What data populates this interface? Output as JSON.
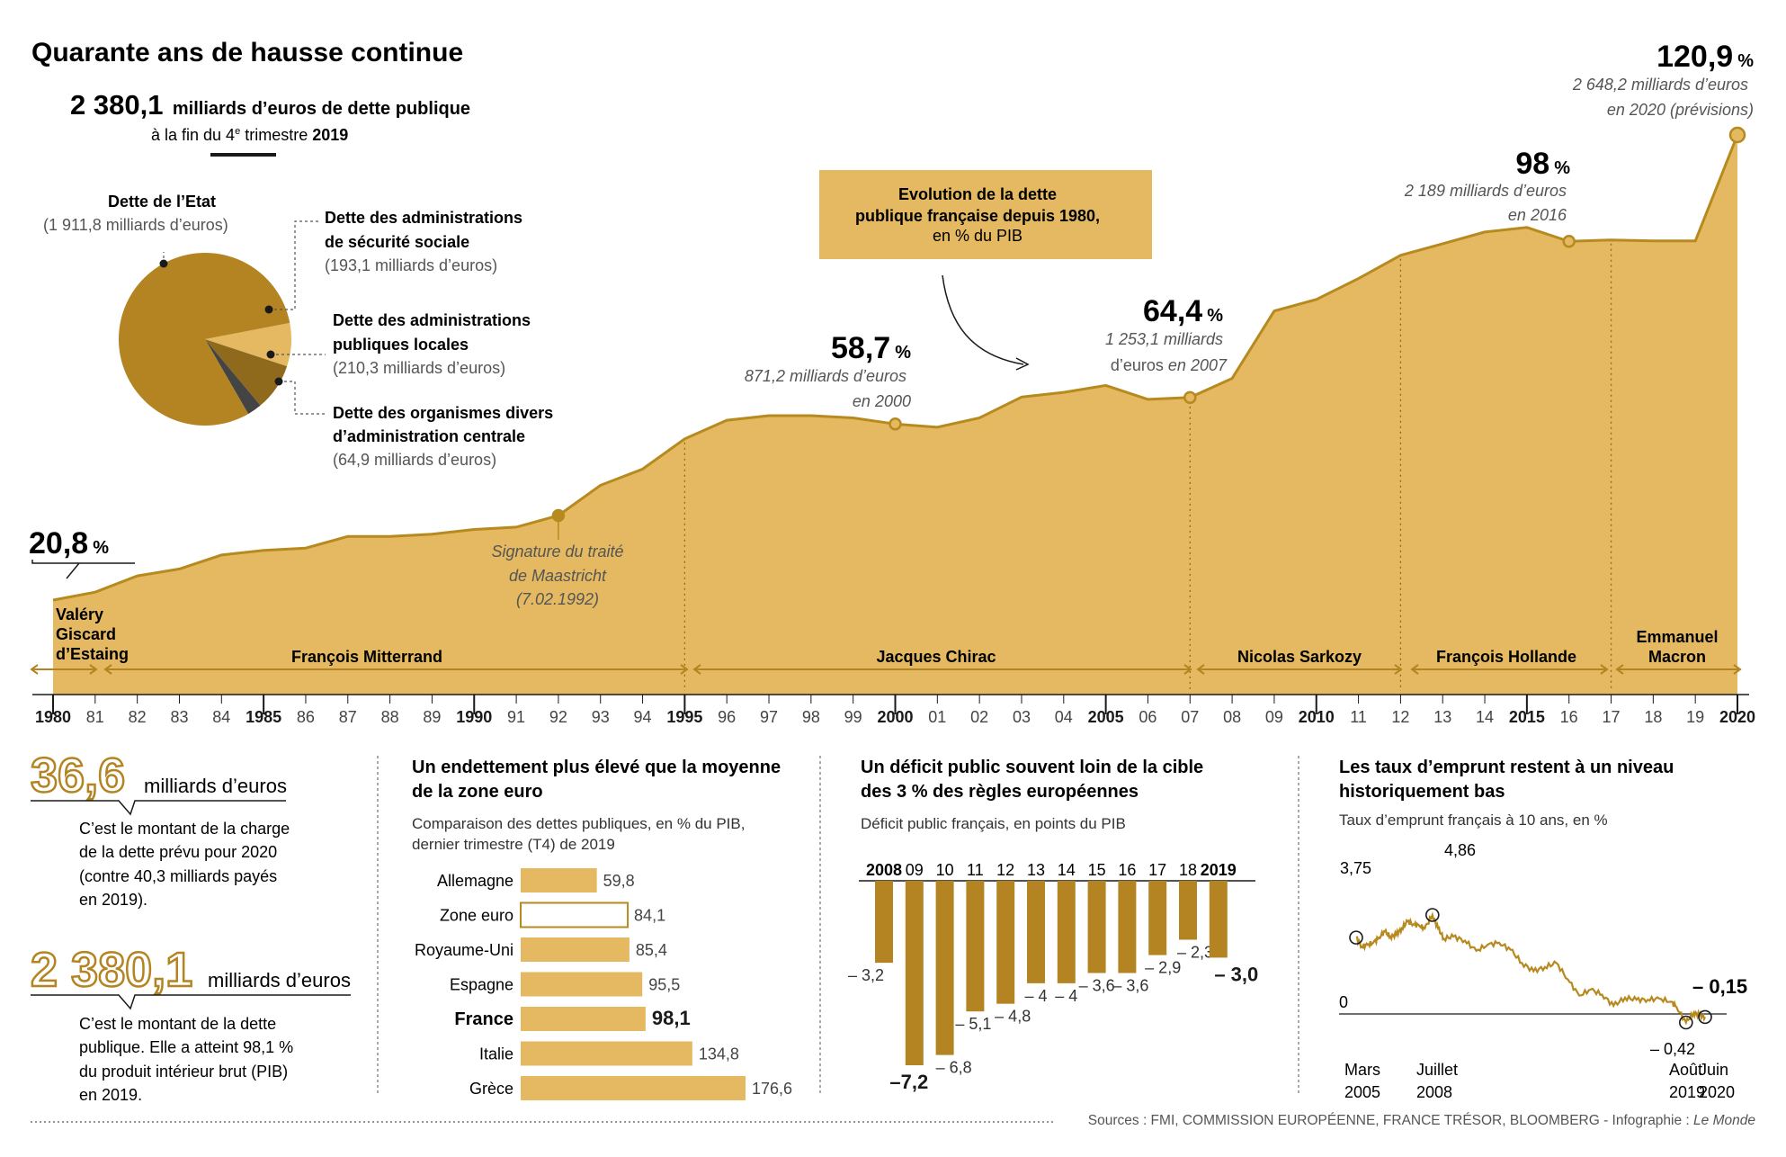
{
  "colors": {
    "area": "#e4b961",
    "line": "#b78a1f",
    "dark": "#b38421",
    "pie_main": "#b38421",
    "pie_light": "#e5b962",
    "pie_mid": "#8f6a1d",
    "pie_dark": "#444444",
    "text": "#1a1a1a",
    "gray": "#555555"
  },
  "header": {
    "title": "Quarante ans de hausse continue",
    "total_value": "2 380,1",
    "total_text": "milliards d’euros de dette publique",
    "total_sub_prefix": "à la fin du 4",
    "total_sub_sup": "e",
    "total_sub_suffix": " trimestre ",
    "total_sub_year": "2019"
  },
  "pie": {
    "slices": [
      {
        "name": "Dette de l’Etat",
        "detail": "(1 911,8 milliards d’euros)",
        "value": 1911.8
      },
      {
        "name_line1": "Dette des administrations",
        "name_line2": "de sécurité sociale",
        "detail": "(193,1 milliards d’euros)",
        "value": 193.1
      },
      {
        "name_line1": "Dette des administrations",
        "name_line2": "publiques locales",
        "detail": "(210,3 milliards d’euros)",
        "value": 210.3
      },
      {
        "name_line1": "Dette des organismes divers",
        "name_line2": "d’administration centrale",
        "detail": "(64,9 milliards d’euros)",
        "value": 64.9
      }
    ]
  },
  "chart_data": [
    {
      "type": "area",
      "title": "Evolution de la dette publique française depuis 1980, en % du PIB",
      "title_line1": "Evolution de la dette",
      "title_line2": "publique française depuis 1980,",
      "title_line3": "en % du PIB",
      "x": [
        1980,
        1981,
        1982,
        1983,
        1984,
        1985,
        1986,
        1987,
        1988,
        1989,
        1990,
        1991,
        1992,
        1993,
        1994,
        1995,
        1996,
        1997,
        1998,
        1999,
        2000,
        2001,
        2002,
        2003,
        2004,
        2005,
        2006,
        2007,
        2008,
        2009,
        2010,
        2011,
        2012,
        2013,
        2014,
        2015,
        2016,
        2017,
        2018,
        2019,
        2020
      ],
      "values": [
        20.8,
        22.5,
        26.0,
        27.5,
        30.5,
        31.5,
        32.0,
        34.5,
        34.5,
        35.0,
        36.0,
        36.5,
        39.0,
        45.5,
        49.0,
        55.5,
        59.5,
        60.5,
        60.5,
        60.0,
        58.7,
        58.0,
        60.0,
        64.5,
        65.5,
        67.0,
        64.0,
        64.4,
        68.5,
        83.0,
        85.5,
        90.0,
        95.0,
        97.5,
        100.0,
        101.0,
        98.0,
        98.3,
        98.1,
        98.1,
        120.9
      ],
      "ylim": [
        0,
        125
      ],
      "x_tick_labels": [
        "1980",
        "81",
        "82",
        "83",
        "84",
        "1985",
        "86",
        "87",
        "88",
        "89",
        "1990",
        "91",
        "92",
        "93",
        "94",
        "1995",
        "96",
        "97",
        "98",
        "99",
        "2000",
        "01",
        "02",
        "03",
        "04",
        "2005",
        "06",
        "07",
        "08",
        "09",
        "2010",
        "11",
        "12",
        "13",
        "14",
        "2015",
        "16",
        "17",
        "18",
        "19",
        "2020"
      ],
      "annotations": {
        "start_value": "20,8",
        "start_unit": "%",
        "maastricht_line1": "Signature du traité",
        "maastricht_line2": "de Maastricht",
        "maastricht_line3": "(7.02.1992)",
        "y2000_value": "58,7",
        "y2000_unit": "%",
        "y2000_line1": "871,2 milliards d’euros",
        "y2000_line2": "en 2000",
        "y2007_value": "64,4",
        "y2007_unit": "%",
        "y2007_line1": "1 253,1 milliards",
        "y2007_line2a": "d’euros",
        "y2007_line2b": " en 2007",
        "y2016_value": "98",
        "y2016_unit": "%",
        "y2016_line1": "2 189 milliards d’euros",
        "y2016_line2": "en 2016",
        "y2020_value": "120,9",
        "y2020_unit": "%",
        "y2020_line1": "2 648,2 milliards d’euros",
        "y2020_line2a": "en 2020",
        "y2020_line2b": " (prévisions)"
      },
      "presidents": [
        {
          "line1": "Valéry",
          "line2": "Giscard",
          "line3": "d’Estaing"
        },
        {
          "line1": "François Mitterrand"
        },
        {
          "line1": "Jacques Chirac"
        },
        {
          "line1": "Nicolas Sarkozy"
        },
        {
          "line1": "François Hollande"
        },
        {
          "line1": "Emmanuel",
          "line2": "Macron"
        }
      ]
    },
    {
      "type": "bar",
      "title": "Un endettement plus élevé que la moyenne de la zone euro",
      "title_line1": "Un endettement plus élevé que la moyenne",
      "title_line2": "de la zone euro",
      "subtitle_line1": "Comparaison des dettes publiques, en % du PIB,",
      "subtitle_line2": "dernier trimestre (T4) de 2019",
      "categories": [
        "Allemagne",
        "Zone euro",
        "Royaume-Uni",
        "Espagne",
        "France",
        "Italie",
        "Grèce"
      ],
      "values": [
        59.8,
        84.1,
        85.4,
        95.5,
        98.1,
        134.8,
        176.6
      ],
      "value_labels": [
        "59,8",
        "84,1",
        "85,4",
        "95,5",
        "98,1",
        "134,8",
        "176,6"
      ]
    },
    {
      "type": "bar",
      "title": "Un déficit public souvent loin de la cible des 3 % des règles européennes",
      "title_line1": "Un déficit public souvent loin de la cible",
      "title_line2": "des 3 % des règles européennes",
      "subtitle": "Déficit public français, en points du PIB",
      "categories": [
        "2008",
        "09",
        "10",
        "11",
        "12",
        "13",
        "14",
        "15",
        "16",
        "17",
        "18",
        "2019"
      ],
      "values": [
        -3.2,
        -7.2,
        -6.8,
        -5.1,
        -4.8,
        -4.0,
        -4.0,
        -3.6,
        -3.6,
        -2.9,
        -2.3,
        -3.0
      ],
      "value_labels": [
        "– 3,2",
        "–7,2",
        "– 6,8",
        "– 5,1",
        "– 4,8",
        "– 4",
        "– 4",
        "– 3,6",
        "– 3,6",
        "– 2,9",
        "– 2,3",
        "– 3,0"
      ]
    },
    {
      "type": "line",
      "title": "Les taux d’emprunt restent à un niveau historiquement bas",
      "title_line1": "Les taux d’emprunt restent à un niveau",
      "title_line2": "historiquement bas",
      "subtitle": "Taux d’emprunt français à 10 ans, en %",
      "x": [
        "2005-03",
        "2005-06",
        "2005-09",
        "2005-12",
        "2006-03",
        "2006-06",
        "2006-09",
        "2006-12",
        "2007-03",
        "2007-06",
        "2007-09",
        "2007-12",
        "2008-03",
        "2008-07",
        "2008-10",
        "2009-01",
        "2009-06",
        "2009-12",
        "2010-06",
        "2010-12",
        "2011-06",
        "2011-12",
        "2012-06",
        "2012-12",
        "2013-06",
        "2013-12",
        "2014-06",
        "2014-12",
        "2015-06",
        "2015-12",
        "2016-06",
        "2016-12",
        "2017-06",
        "2017-12",
        "2018-06",
        "2018-12",
        "2019-03",
        "2019-08",
        "2019-12",
        "2020-03",
        "2020-06"
      ],
      "values": [
        3.75,
        3.3,
        3.4,
        3.5,
        3.75,
        4.05,
        3.8,
        3.9,
        4.2,
        4.55,
        4.4,
        4.35,
        4.2,
        4.86,
        4.2,
        3.7,
        3.8,
        3.6,
        3.1,
        3.4,
        3.5,
        3.15,
        2.5,
        2.1,
        2.3,
        2.5,
        1.7,
        0.9,
        1.2,
        0.95,
        0.4,
        0.8,
        0.7,
        0.7,
        0.75,
        0.6,
        0.35,
        -0.42,
        0.05,
        -0.05,
        -0.15
      ],
      "y_tick": "0",
      "annotations": {
        "start": "3,75",
        "peak": "4,86",
        "low": "– 0,42",
        "end": "– 0,15"
      },
      "x_labels": [
        {
          "line1": "Mars",
          "line2": "2005"
        },
        {
          "line1": "Juillet",
          "line2": "2008"
        },
        {
          "line1": "Août",
          "line2": "2019"
        },
        {
          "line1": "Juin",
          "line2": "2020"
        }
      ]
    }
  ],
  "facts": [
    {
      "value": "36,6",
      "unit": "milliards d’euros",
      "lines": [
        "C’est le montant de la charge",
        "de la dette prévu pour 2020",
        "(contre 40,3 milliards payés",
        "en 2019)."
      ]
    },
    {
      "value": "2 380,1",
      "unit": "milliards d’euros",
      "lines": [
        "C’est le montant de la dette",
        "publique. Elle a atteint 98,1 %",
        "du produit intérieur brut (PIB)",
        "en 2019."
      ]
    }
  ],
  "footer": {
    "sources": "Sources : FMI, COMMISSION EUROPÉENNE, FRANCE TRÉSOR, BLOOMBERG - Infographie : ",
    "credit": "Le Monde"
  }
}
